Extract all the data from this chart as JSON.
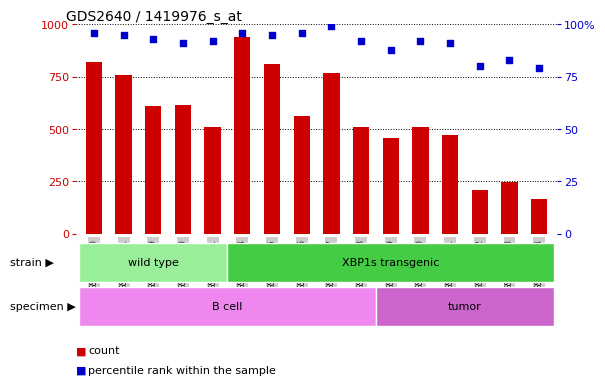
{
  "title": "GDS2640 / 1419976_s_at",
  "samples": [
    "GSM160730",
    "GSM160731",
    "GSM160739",
    "GSM160860",
    "GSM160861",
    "GSM160864",
    "GSM160865",
    "GSM160866",
    "GSM160867",
    "GSM160868",
    "GSM160869",
    "GSM160880",
    "GSM160881",
    "GSM160882",
    "GSM160883",
    "GSM160884"
  ],
  "counts": [
    820,
    760,
    610,
    615,
    510,
    940,
    810,
    560,
    770,
    510,
    455,
    510,
    470,
    210,
    245,
    165
  ],
  "percentiles": [
    96,
    95,
    93,
    91,
    92,
    96,
    95,
    96,
    99,
    92,
    88,
    92,
    91,
    80,
    83,
    79
  ],
  "bar_color": "#cc0000",
  "dot_color": "#0000cc",
  "left_yaxis_color": "#cc0000",
  "right_yaxis_color": "#0000cc",
  "left_ylim": [
    0,
    1000
  ],
  "right_ylim": [
    0,
    100
  ],
  "left_yticks": [
    0,
    250,
    500,
    750,
    1000
  ],
  "right_yticks": [
    0,
    25,
    50,
    75,
    100
  ],
  "right_yticklabels": [
    "0",
    "25",
    "50",
    "75",
    "100%"
  ],
  "strain_groups": [
    {
      "label": "wild type",
      "start": 0,
      "end": 5,
      "color": "#99ee99"
    },
    {
      "label": "XBP1s transgenic",
      "start": 5,
      "end": 16,
      "color": "#44cc44"
    }
  ],
  "specimen_groups": [
    {
      "label": "B cell",
      "start": 0,
      "end": 10,
      "color": "#ee88ee"
    },
    {
      "label": "tumor",
      "start": 10,
      "end": 16,
      "color": "#cc66cc"
    }
  ],
  "legend_count_color": "#cc0000",
  "legend_dot_color": "#0000cc",
  "legend_count_label": "count",
  "legend_percentile_label": "percentile rank within the sample",
  "strain_label": "strain",
  "specimen_label": "specimen",
  "background_color": "#ffffff",
  "tick_label_bg": "#cccccc",
  "grid_color": "#000000",
  "n_samples": 16
}
